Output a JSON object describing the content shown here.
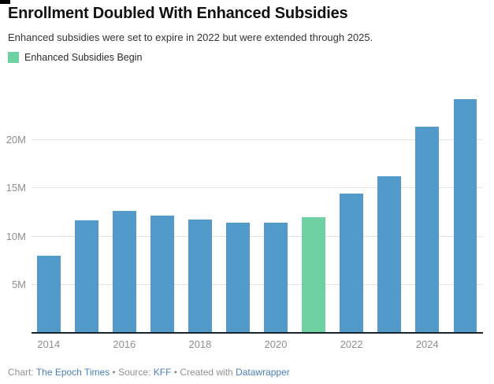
{
  "header": {
    "title": "Enrollment Doubled With Enhanced Subsidies",
    "subtitle": "Enhanced subsidies were set to expire in 2022 but were extended through 2025."
  },
  "legend": {
    "label": "Enhanced Subsidies Begin",
    "swatch_color": "#6fd1a1"
  },
  "chart_data": {
    "type": "bar",
    "title": "Enrollment Doubled With Enhanced Subsidies",
    "subtitle": "Enhanced subsidies were set to expire in 2022 but were extended through 2025.",
    "unit": "M",
    "categories": [
      "2014",
      "2015",
      "2016",
      "2017",
      "2018",
      "2019",
      "2020",
      "2021",
      "2022",
      "2023",
      "2024",
      "2025"
    ],
    "values": [
      8.0,
      11.7,
      12.7,
      12.2,
      11.8,
      11.4,
      11.4,
      12.0,
      14.5,
      16.3,
      21.4,
      24.3
    ],
    "highlight": {
      "index": 7,
      "category": "2021",
      "label": "Enhanced Subsidies Begin",
      "color": "#6fd1a1"
    },
    "bar_color": "#529ac9",
    "ymax": 25,
    "grid": "horizontal",
    "gridline_color": "#e4e4e4",
    "axis_color": "#19232c",
    "yticks": [
      {
        "value": 5,
        "label": "5M"
      },
      {
        "value": 10,
        "label": "10M"
      },
      {
        "value": 15,
        "label": "15M"
      },
      {
        "value": 20,
        "label": "20M"
      }
    ],
    "xticks": [
      {
        "index": 0,
        "label": "2014"
      },
      {
        "index": 2,
        "label": "2016"
      },
      {
        "index": 4,
        "label": "2018"
      },
      {
        "index": 6,
        "label": "2020"
      },
      {
        "index": 8,
        "label": "2022"
      },
      {
        "index": 10,
        "label": "2024"
      }
    ],
    "legend_position": "top-left"
  },
  "footer": {
    "chart_label": "Chart:",
    "chart_name": "The Epoch Times",
    "separator": "•",
    "source_label": "Source:",
    "source_name": "KFF",
    "created_label": "Created with",
    "tool_name": "Datawrapper",
    "link_color": "#4a80b8"
  }
}
